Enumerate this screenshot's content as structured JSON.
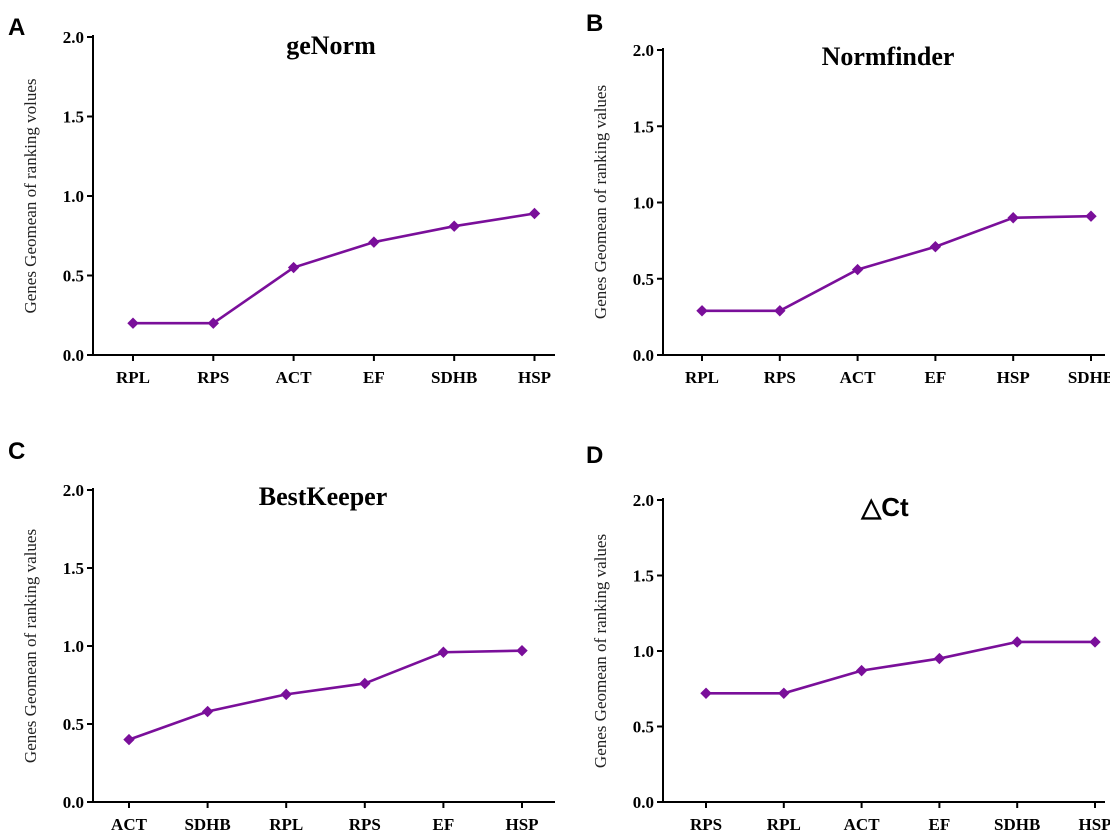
{
  "colors": {
    "series": "#7a0f9a",
    "axis": "#000000"
  },
  "chart_data": [
    {
      "panel": "A",
      "type": "line",
      "title": "geNorm",
      "ylabel": "Genes Geomean of ranking volues",
      "xlabel": "",
      "ylim": [
        0,
        2.0
      ],
      "yticks": [
        "0.0",
        "0.5",
        "1.0",
        "1.5",
        "2.0"
      ],
      "categories": [
        "RPL",
        "RPS",
        "ACT",
        "EF",
        "SDHB",
        "HSP"
      ],
      "values": [
        0.2,
        0.2,
        0.55,
        0.71,
        0.81,
        0.89
      ],
      "marker": "diamond",
      "grid": false
    },
    {
      "panel": "B",
      "type": "line",
      "title": "Normfinder",
      "ylabel": "Genes Geomean of ranking values",
      "xlabel": "",
      "ylim": [
        0,
        2.0
      ],
      "yticks": [
        "0.0",
        "0.5",
        "1.0",
        "1.5",
        "2.0"
      ],
      "categories": [
        "RPL",
        "RPS",
        "ACT",
        "EF",
        "HSP",
        "SDHB"
      ],
      "values": [
        0.29,
        0.29,
        0.56,
        0.71,
        0.9,
        0.91
      ],
      "marker": "diamond",
      "grid": false
    },
    {
      "panel": "C",
      "type": "line",
      "title": "BestKeeper",
      "ylabel": "Genes Geomean of ranking values",
      "xlabel": "",
      "ylim": [
        0,
        2.0
      ],
      "yticks": [
        "0.0",
        "0.5",
        "1.0",
        "1.5",
        "2.0"
      ],
      "categories": [
        "ACT",
        "SDHB",
        "RPL",
        "RPS",
        "EF",
        "HSP"
      ],
      "values": [
        0.4,
        0.58,
        0.69,
        0.76,
        0.96,
        0.97
      ],
      "marker": "diamond",
      "grid": false
    },
    {
      "panel": "D",
      "type": "line",
      "title": "△Ct",
      "ylabel": "Genes Geomean of ranking values",
      "xlabel": "",
      "ylim": [
        0,
        2.0
      ],
      "yticks": [
        "0.0",
        "0.5",
        "1.0",
        "1.5",
        "2.0"
      ],
      "categories": [
        "RPS",
        "RPL",
        "ACT",
        "EF",
        "SDHB",
        "HSP"
      ],
      "values": [
        0.72,
        0.72,
        0.87,
        0.95,
        1.06,
        1.06
      ],
      "marker": "diamond",
      "grid": false
    }
  ]
}
